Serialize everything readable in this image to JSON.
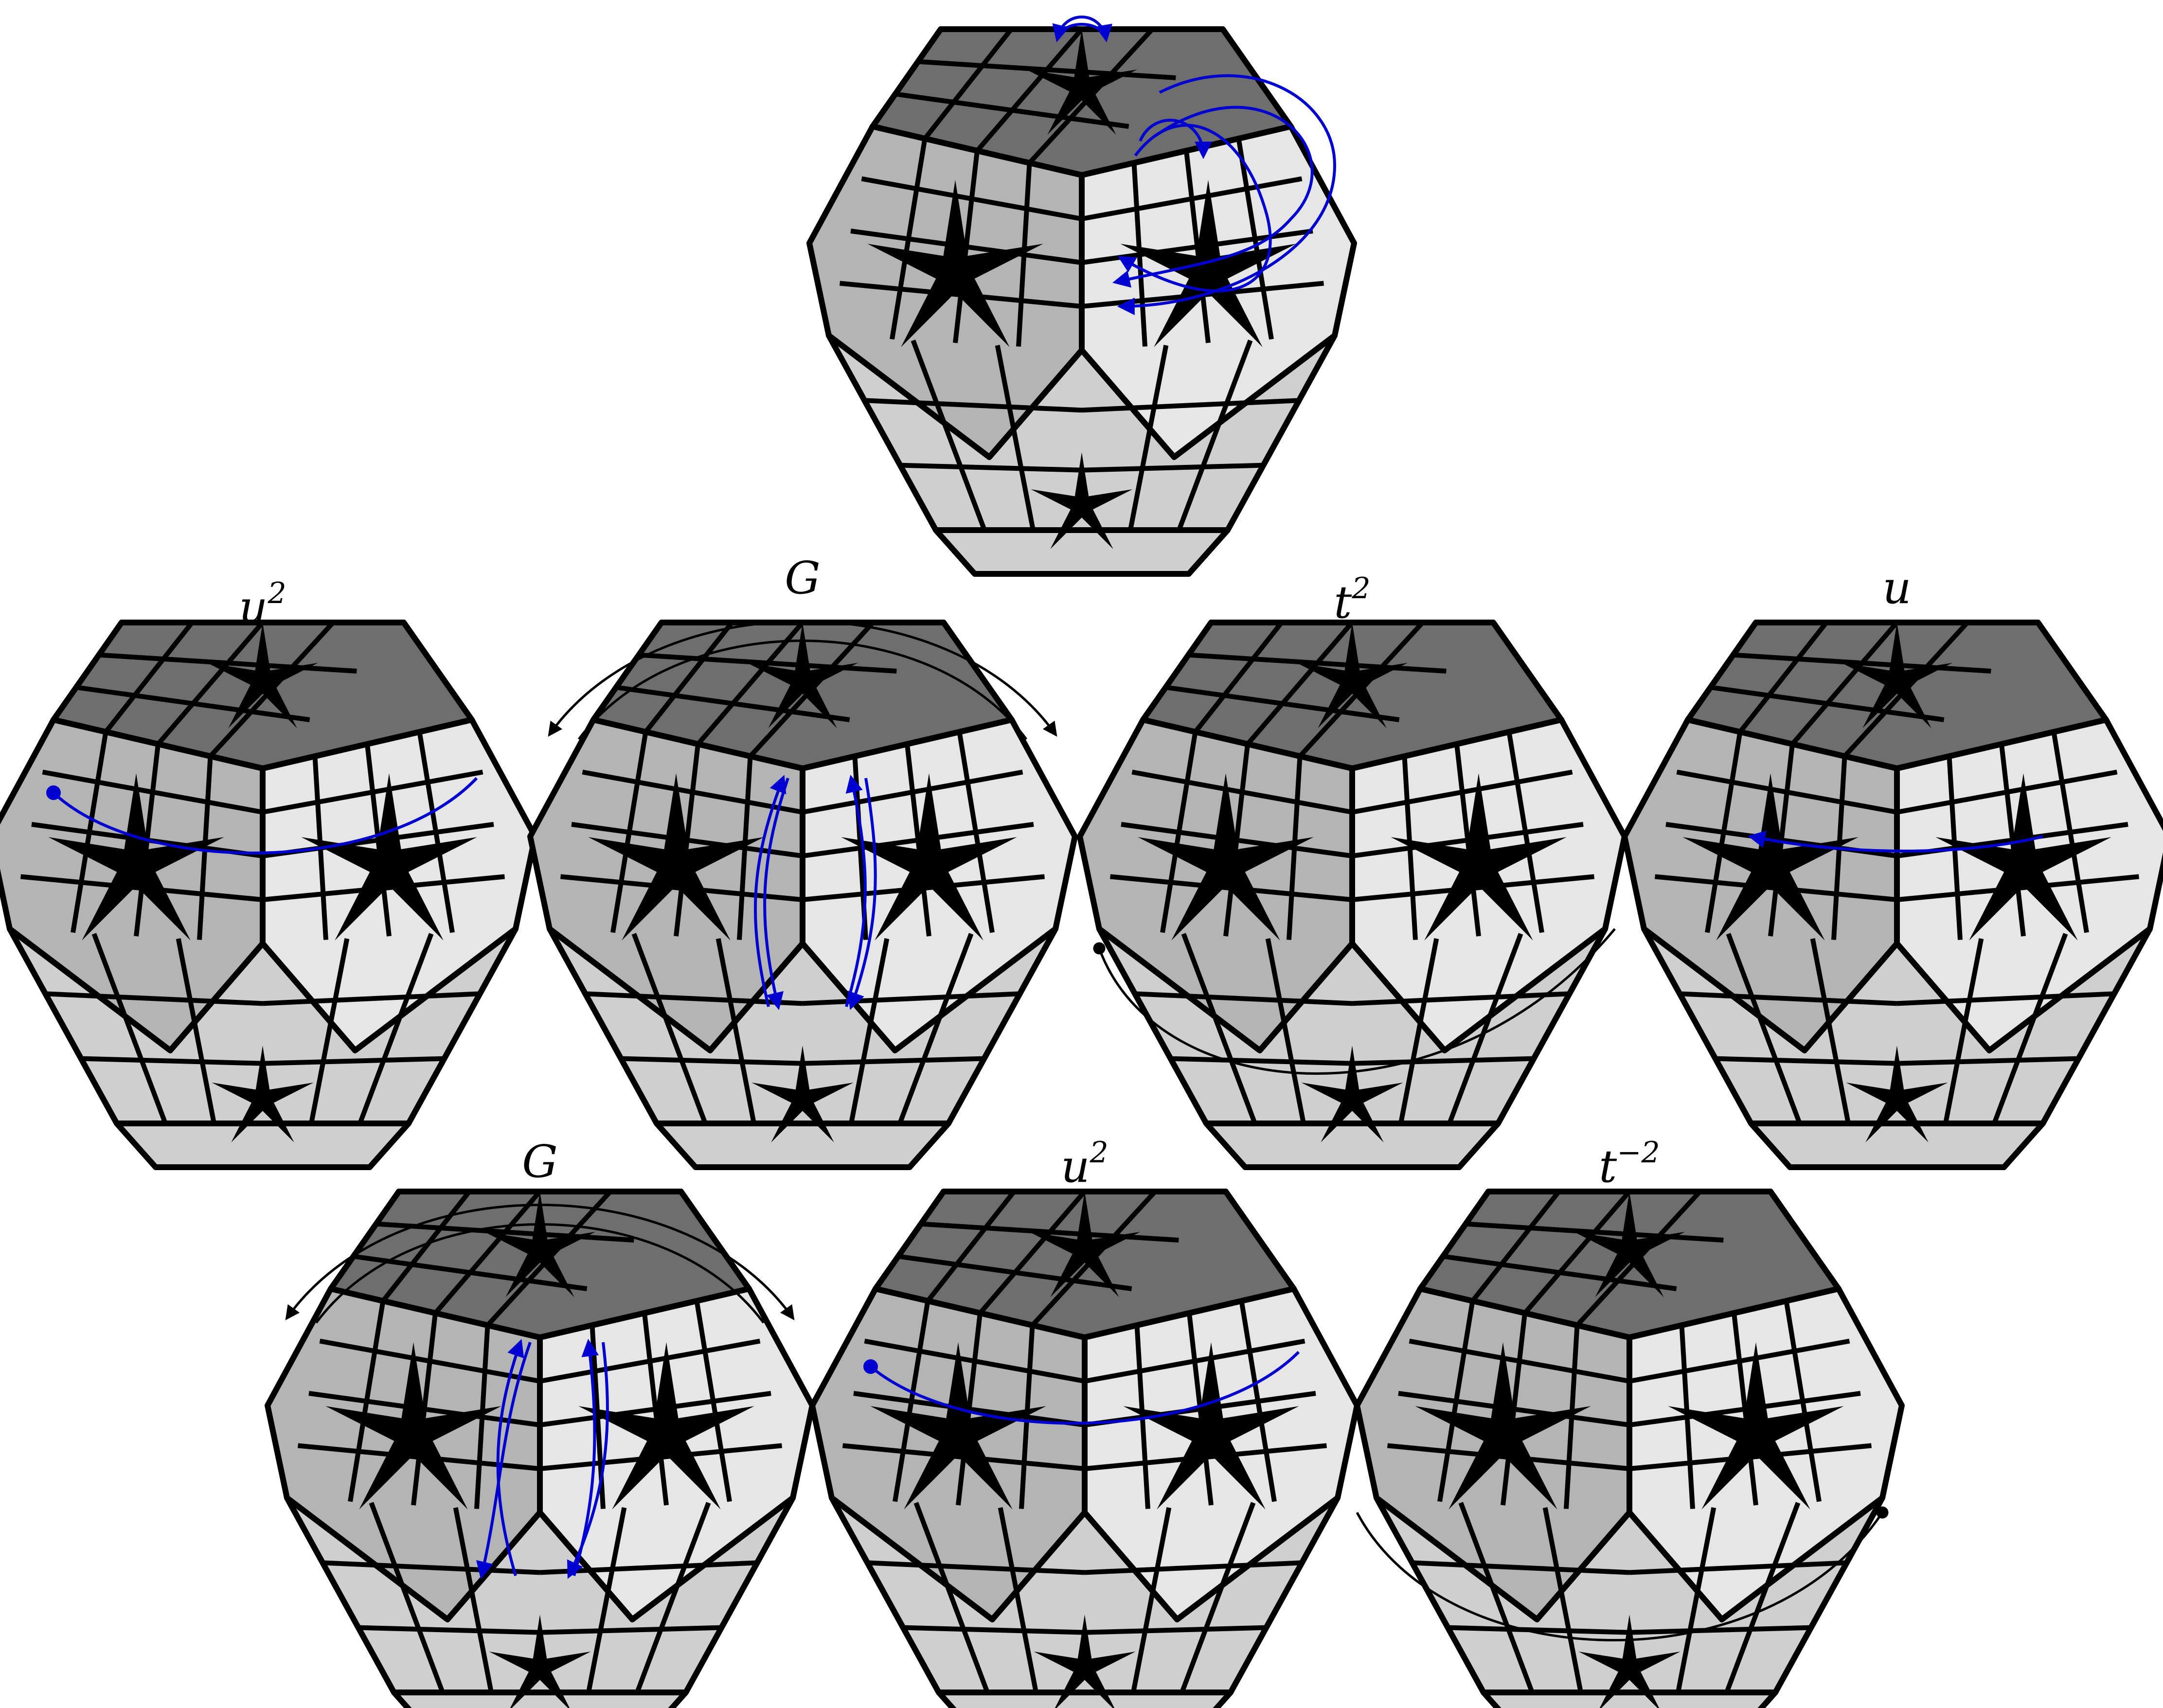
{
  "colors": {
    "background": "#ffffff",
    "face_top": "#6e6e6e",
    "face_left": "#b4b4b4",
    "face_right": "#e6e6e6",
    "face_bottom": "#cfcfcf",
    "edge_lines": "#000000",
    "arrow_blue": "#0000d0",
    "arrow_black": "#000000"
  },
  "steps": [
    {
      "base": "",
      "exponent": "",
      "arrow": "start-slices"
    },
    {
      "base": "u",
      "exponent": "2",
      "arrow": "u-slice-left"
    },
    {
      "base": "G",
      "exponent": "",
      "arrow": "G-rotation"
    },
    {
      "base": "t",
      "exponent": "2",
      "arrow": "t-turn-left"
    },
    {
      "base": "u",
      "exponent": "",
      "arrow": "u-short-left"
    },
    {
      "base": "G",
      "exponent": "",
      "arrow": "G-rotation"
    },
    {
      "base": "u",
      "exponent": "2",
      "arrow": "u-slice-left"
    },
    {
      "base": "t",
      "exponent": "−2",
      "arrow": "t-turn-right"
    }
  ]
}
